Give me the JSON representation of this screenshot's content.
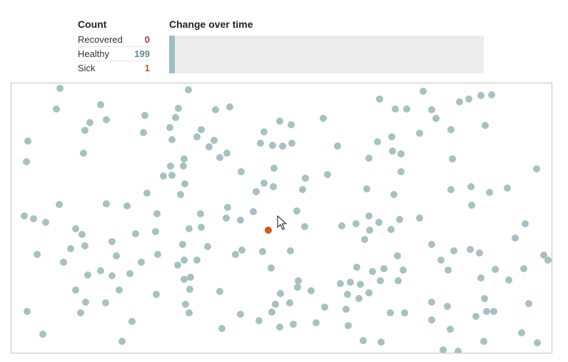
{
  "count_panel": {
    "title": "Count",
    "rows": [
      {
        "label": "Recovered",
        "value": "0",
        "color": "#8a3a6a"
      },
      {
        "label": "Healthy",
        "value": "199",
        "color": "#5d8c95"
      },
      {
        "label": "Sick",
        "value": "1",
        "color": "#c0561a"
      }
    ]
  },
  "chart_panel": {
    "title": "Change over time",
    "healthy_fraction": 0.995,
    "bar_color": "#9fbfc6",
    "background_color": "#ececec"
  },
  "colors": {
    "healthy": "#a7c1c3",
    "sick": "#cc5a1c"
  },
  "simulation": {
    "healthy_count": 199,
    "sick_count": 1
  }
}
